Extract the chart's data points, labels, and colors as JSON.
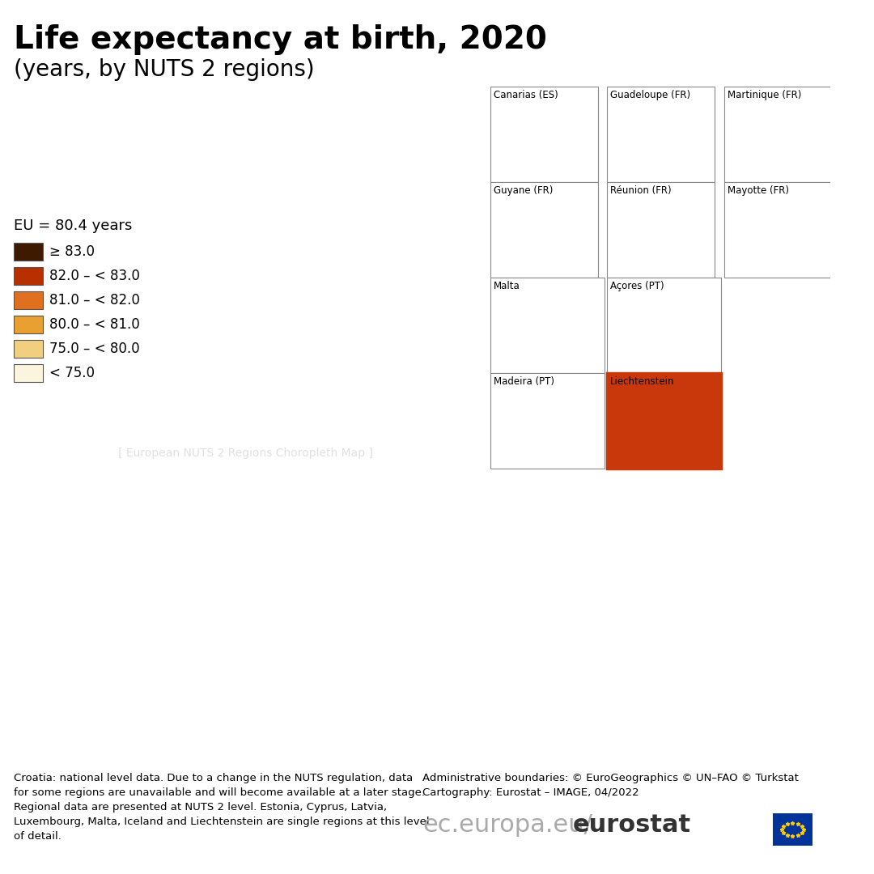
{
  "title_line1": "Life expectancy at birth, 2020",
  "title_line2": "(years, by NUTS 2 regions)",
  "eu_label": "EU = 80.4 years",
  "legend_items": [
    {
      "label": "≥ 83.0",
      "color": "#3d1a00"
    },
    {
      "label": "82.0 – < 83.0",
      "color": "#b83000"
    },
    {
      "label": "81.0 – < 82.0",
      "color": "#e07020"
    },
    {
      "label": "80.0 – < 81.0",
      "color": "#e8a030"
    },
    {
      "label": "75.0 – < 80.0",
      "color": "#f0d080"
    },
    {
      "label": "< 75.0",
      "color": "#faf5dc"
    }
  ],
  "inset_labels": [
    "Canarias (ES)",
    "Guadeloupe (FR)",
    "Martinique (FR)",
    "Guyane (FR)",
    "Réunion (FR)",
    "Mayotte (FR)",
    "Malta",
    "Açores (PT)",
    "Madeira (PT)",
    "Liechtenstein"
  ],
  "footer_left": "Croatia: national level data. Due to a change in the NUTS regulation, data\nfor some regions are unavailable and will become available at a later stage.\nRegional data are presented at NUTS 2 level. Estonia, Cyprus, Latvia,\nLuxembourg, Malta, Iceland and Liechtenstein are single regions at this level\nof detail.",
  "footer_right_top": "Administrative boundaries: © EuroGeographics © UN–FAO © Turkstat\nCartography: Eurostat – IMAGE, 04/2022",
  "footer_right_bottom": "ec.europa.eu/eurostat",
  "background_color": "#ffffff",
  "non_eu_color": "#c8c8c8",
  "border_color": "#333333",
  "inset_border_color": "#555555",
  "liechtenstein_highlight": true
}
